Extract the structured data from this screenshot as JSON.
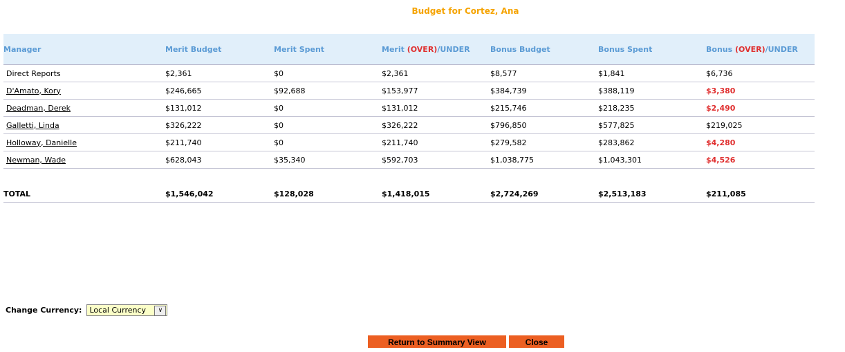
{
  "title": "Budget for Cortez, Ana",
  "headers": [
    {
      "pre": "Manager",
      "over": "",
      "post": ""
    },
    {
      "pre": "Merit Budget",
      "over": "",
      "post": ""
    },
    {
      "pre": "Merit Spent",
      "over": "",
      "post": ""
    },
    {
      "pre": "Merit ",
      "over": "(OVER)",
      "post": "/UNDER"
    },
    {
      "pre": "Bonus Budget",
      "over": "",
      "post": ""
    },
    {
      "pre": "Bonus Spent",
      "over": "",
      "post": ""
    },
    {
      "pre": "Bonus ",
      "over": "(OVER)",
      "post": "/UNDER"
    }
  ],
  "rows": [
    {
      "manager": "Direct Reports",
      "link": false,
      "values": [
        "$2,361",
        "$0",
        "$2,361",
        "$8,577",
        "$1,841",
        "$6,736"
      ],
      "bonus_over": false
    },
    {
      "manager": "D'Amato, Kory",
      "link": true,
      "values": [
        "$246,665",
        "$92,688",
        "$153,977",
        "$384,739",
        "$388,119",
        "$3,380"
      ],
      "bonus_over": true
    },
    {
      "manager": "Deadman, Derek",
      "link": true,
      "values": [
        "$131,012",
        "$0",
        "$131,012",
        "$215,746",
        "$218,235",
        "$2,490"
      ],
      "bonus_over": true
    },
    {
      "manager": "Galletti, Linda",
      "link": true,
      "values": [
        "$326,222",
        "$0",
        "$326,222",
        "$796,850",
        "$577,825",
        "$219,025"
      ],
      "bonus_over": false
    },
    {
      "manager": "Holloway, Danielle",
      "link": true,
      "values": [
        "$211,740",
        "$0",
        "$211,740",
        "$279,582",
        "$283,862",
        "$4,280"
      ],
      "bonus_over": true
    },
    {
      "manager": "Newman, Wade",
      "link": true,
      "values": [
        "$628,043",
        "$35,340",
        "$592,703",
        "$1,038,775",
        "$1,043,301",
        "$4,526"
      ],
      "bonus_over": true
    }
  ],
  "total": {
    "label": "TOTAL",
    "values": [
      "$1,546,042",
      "$128,028",
      "$1,418,015",
      "$2,724,269",
      "$2,513,183",
      "$211,085"
    ]
  },
  "currency": {
    "label": "Change Currency:",
    "selected": "Local Currency"
  },
  "buttons": {
    "return": "Return to Summary View",
    "close": "Close"
  },
  "colors": {
    "title": "#f5a300",
    "header_text": "#5b9bd5",
    "over": "#e03030",
    "button": "#ec5f22"
  }
}
